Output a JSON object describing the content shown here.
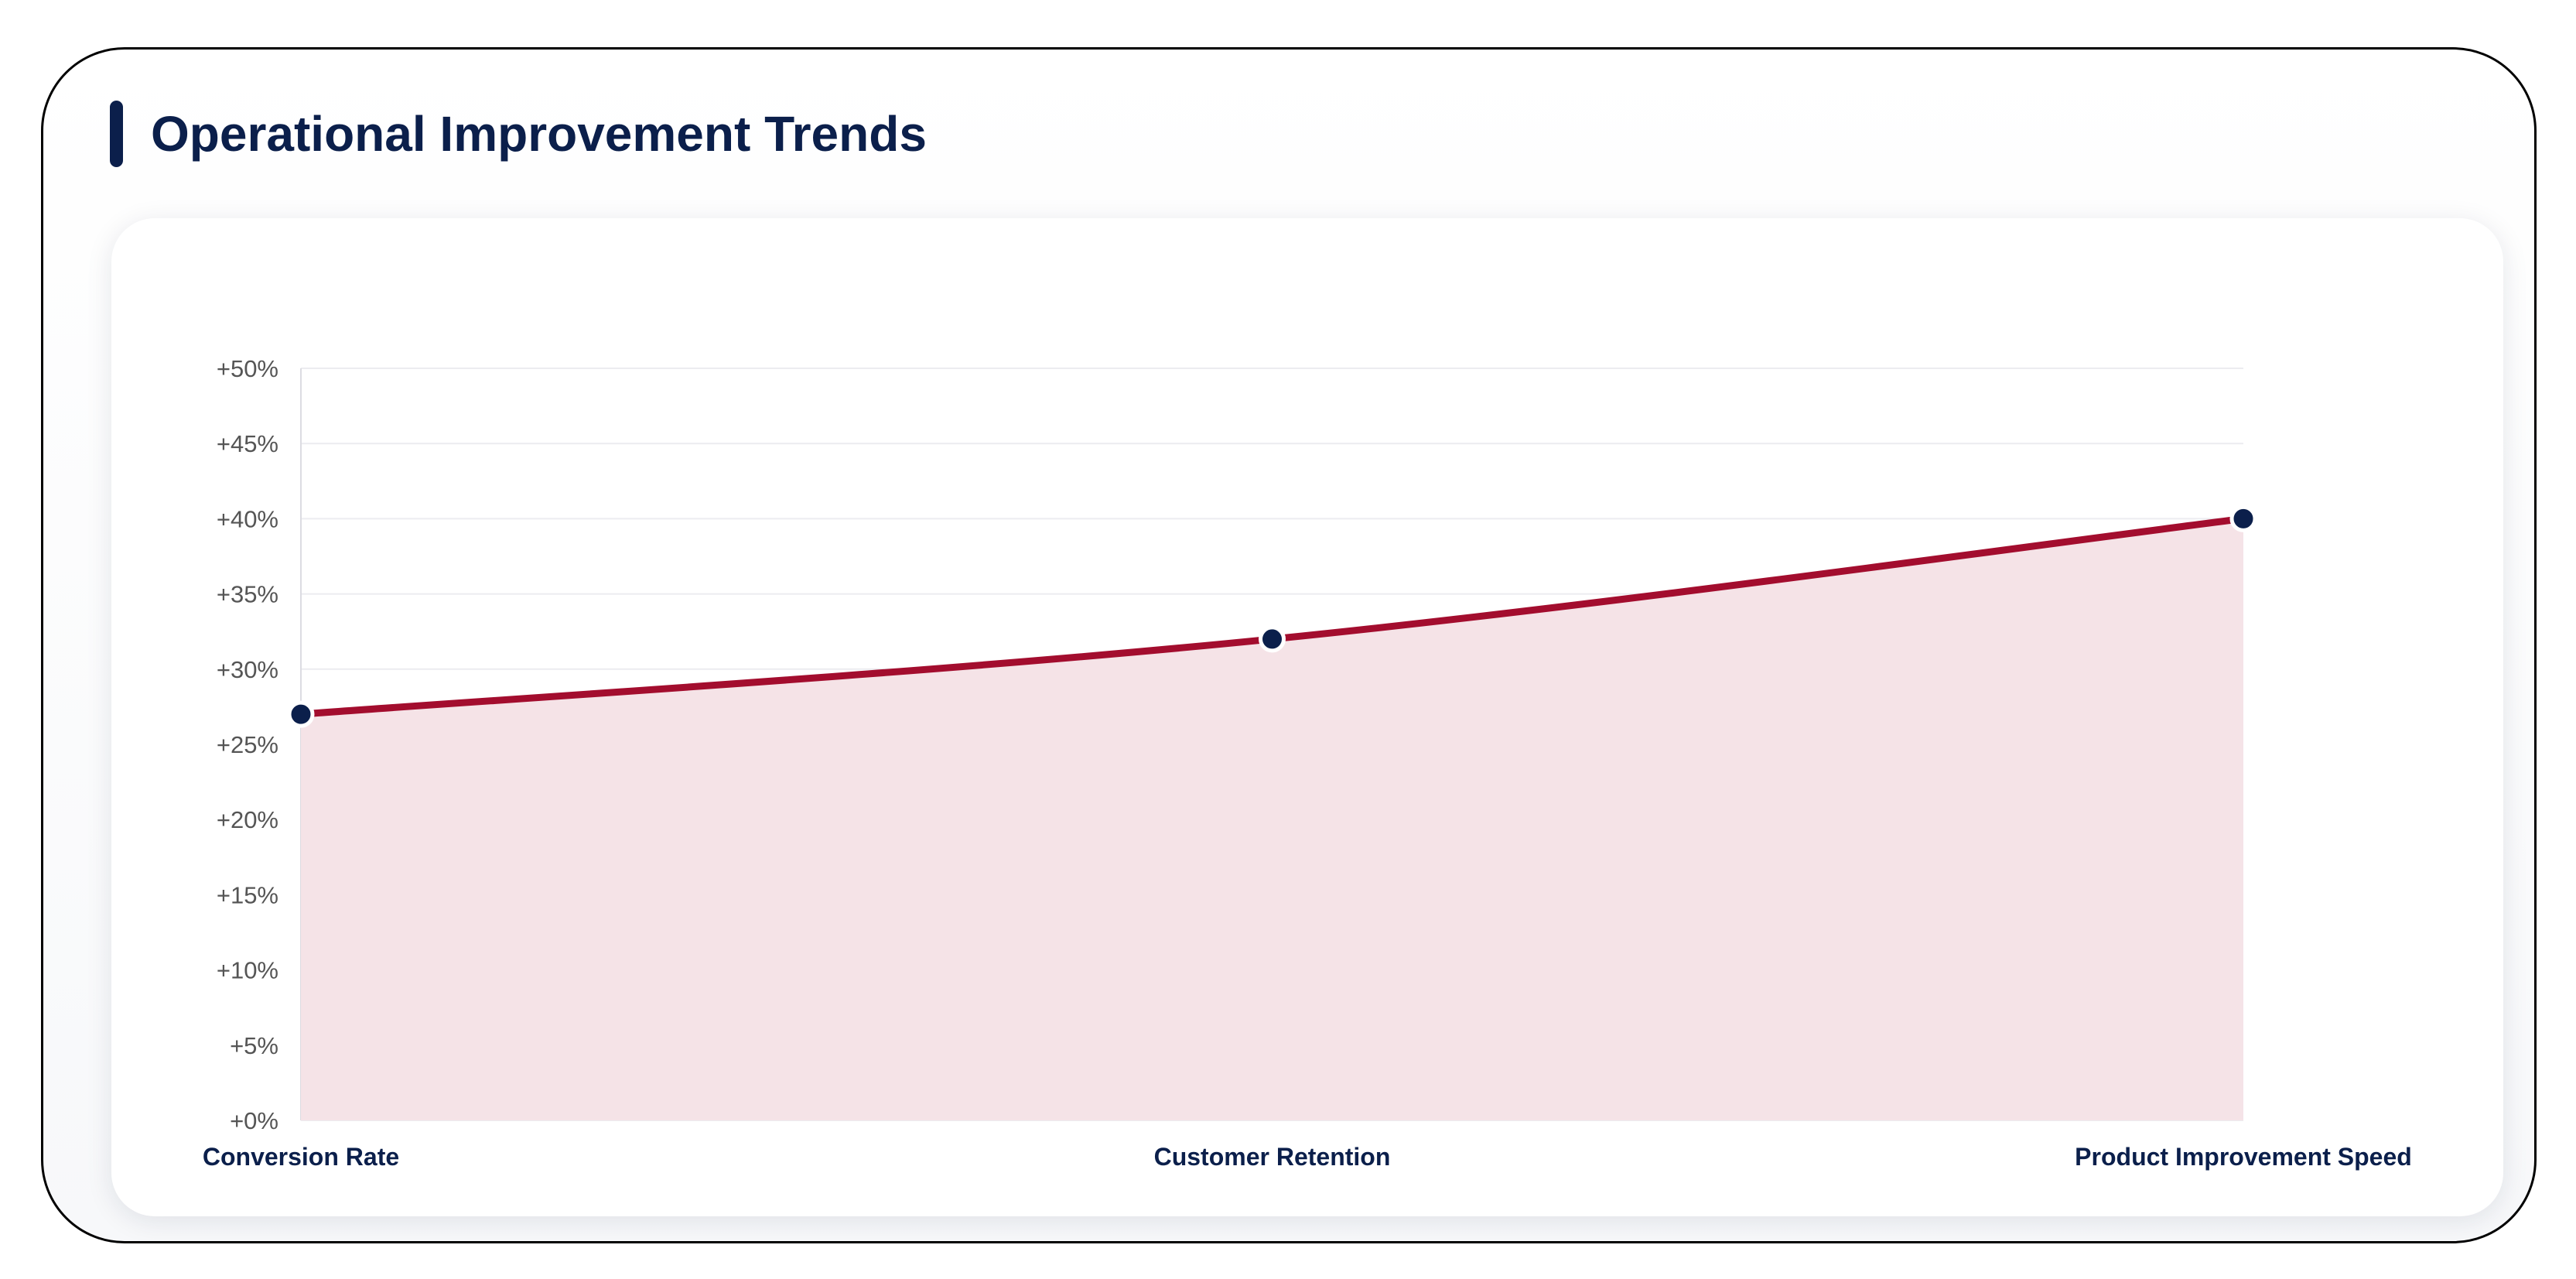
{
  "header": {
    "title": "Operational Improvement Trends"
  },
  "colors": {
    "accent": "#0b1f4b",
    "line": "#a30d2e",
    "area": "#f5e3e7",
    "point": "#0b1f4b",
    "grid": "#ececf0",
    "tick_text": "#555555"
  },
  "chart_data": {
    "type": "area",
    "title": "",
    "xlabel": "",
    "ylabel": "",
    "categories": [
      "Conversion Rate",
      "Customer Retention",
      "Product Improvement Speed"
    ],
    "series": [
      {
        "values": [
          27,
          32,
          40
        ]
      }
    ],
    "ylim": [
      0,
      50
    ],
    "yticks": [
      0,
      5,
      10,
      15,
      20,
      25,
      30,
      35,
      40,
      45,
      50
    ],
    "ytick_labels": [
      "+0%",
      "+5%",
      "+10%",
      "+15%",
      "+20%",
      "+25%",
      "+30%",
      "+35%",
      "+40%",
      "+45%",
      "+50%"
    ],
    "grid": true,
    "legend": "none",
    "smooth": true
  }
}
